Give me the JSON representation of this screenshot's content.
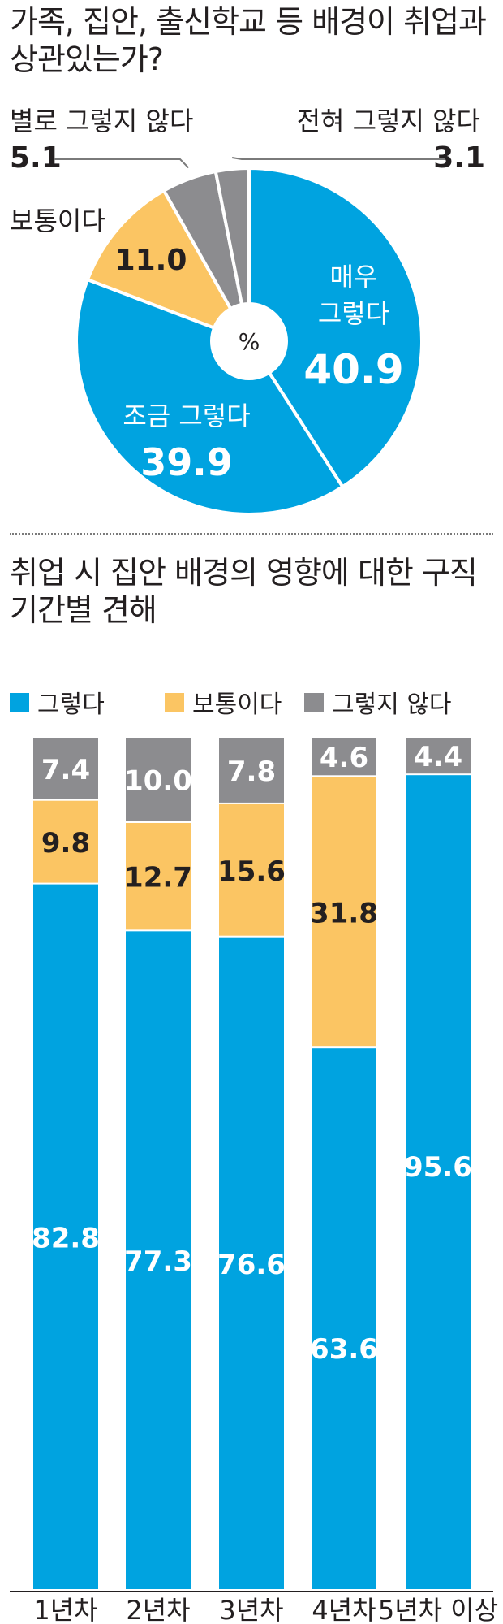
{
  "chart_data": [
    {
      "type": "pie",
      "title": "가족, 집안, 출신학교 등 배경이 취업과 상관있는가?",
      "unit": "%",
      "slices": [
        {
          "label": "매우 그렇다",
          "label_lines": [
            "매우",
            "그렇다"
          ],
          "value": 40.9,
          "color": "#00a3e0"
        },
        {
          "label": "조금 그렇다",
          "label_lines": [
            "조금 그렇다"
          ],
          "value": 39.9,
          "color": "#00a3e0"
        },
        {
          "label": "보통이다",
          "label_lines": [
            "보통이다"
          ],
          "value": 11.0,
          "color": "#fbc563"
        },
        {
          "label": "별로 그렇지 않다",
          "label_lines": [
            "별로 그렇지 않다"
          ],
          "value": 5.1,
          "color": "#8c8c8f"
        },
        {
          "label": "전혀 그렇지 않다",
          "label_lines": [
            "전혀 그렇지 않다"
          ],
          "value": 3.1,
          "color": "#8c8c8f"
        }
      ]
    },
    {
      "type": "bar",
      "stacked": true,
      "title": "취업 시 집안 배경의 영향에 대한 구직기간별 견해",
      "legend_position": "top-left",
      "categories": [
        "1년차",
        "2년차",
        "3년차",
        "4년차",
        "5년차 이상"
      ],
      "series": [
        {
          "name": "그렇다",
          "color": "#00a3e0",
          "values": [
            82.8,
            77.3,
            76.6,
            63.6,
            95.6
          ]
        },
        {
          "name": "보통이다",
          "color": "#fbc563",
          "values": [
            9.8,
            12.7,
            15.6,
            31.8,
            null
          ]
        },
        {
          "name": "그렇지 않다",
          "color": "#8c8c8f",
          "values": [
            7.4,
            10.0,
            7.8,
            4.6,
            4.4
          ]
        }
      ],
      "ylim": [
        0,
        100
      ]
    }
  ]
}
